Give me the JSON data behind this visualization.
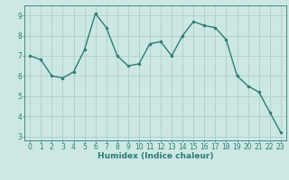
{
  "x": [
    0,
    1,
    2,
    3,
    4,
    5,
    6,
    7,
    8,
    9,
    10,
    11,
    12,
    13,
    14,
    15,
    16,
    17,
    18,
    19,
    20,
    21,
    22,
    23
  ],
  "y": [
    7.0,
    6.8,
    6.0,
    5.9,
    6.2,
    7.3,
    9.1,
    8.4,
    7.0,
    6.5,
    6.6,
    7.6,
    7.7,
    7.0,
    8.0,
    8.7,
    8.5,
    8.4,
    7.8,
    6.0,
    5.5,
    5.2,
    4.2,
    3.2
  ],
  "line_color": "#2e7d6e",
  "marker": "o",
  "marker_size": 2.0,
  "bg_color": "#cce8e4",
  "grid_color": "#aececa",
  "xlabel": "Humidex (Indice chaleur)",
  "ylim": [
    2.8,
    9.5
  ],
  "xlim": [
    -0.5,
    23.5
  ],
  "yticks": [
    3,
    4,
    5,
    6,
    7,
    8,
    9
  ],
  "xticks": [
    0,
    1,
    2,
    3,
    4,
    5,
    6,
    7,
    8,
    9,
    10,
    11,
    12,
    13,
    14,
    15,
    16,
    17,
    18,
    19,
    20,
    21,
    22,
    23
  ],
  "xlabel_fontsize": 6.5,
  "tick_fontsize": 5.5,
  "line_width": 1.0
}
